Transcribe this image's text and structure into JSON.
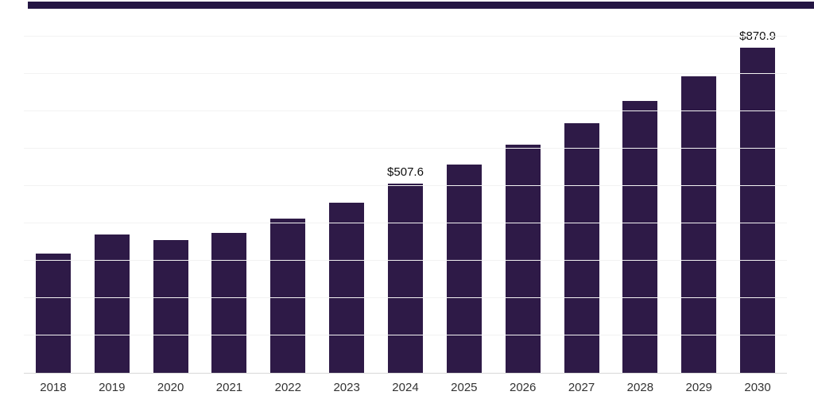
{
  "colors": {
    "bar": "#2e1a47",
    "header_strip": "#241543",
    "background": "#ffffff",
    "gridline": "#f2f2f2",
    "axis_line": "#d8d8d8",
    "axis_label_text": "#333333",
    "data_label_text": "#0e0e0e"
  },
  "chart_data": {
    "type": "bar",
    "title": "",
    "xlabel": "",
    "ylabel": "",
    "categories": [
      "2018",
      "2019",
      "2020",
      "2021",
      "2022",
      "2023",
      "2024",
      "2025",
      "2026",
      "2027",
      "2028",
      "2029",
      "2030"
    ],
    "values": [
      318.6,
      369.5,
      354.7,
      373.8,
      412.0,
      456.6,
      507.6,
      558.6,
      611.7,
      669.2,
      728.5,
      794.3,
      870.9
    ],
    "data_labels": [
      "",
      "",
      "",
      "",
      "",
      "",
      "$507.6",
      "",
      "",
      "",
      "",
      "",
      "$870.9"
    ],
    "ylim": [
      0,
      960
    ],
    "gridline_values": [
      100,
      200,
      300,
      400,
      500,
      600,
      700,
      800,
      900
    ],
    "legend": "none",
    "grid": "horizontal"
  }
}
